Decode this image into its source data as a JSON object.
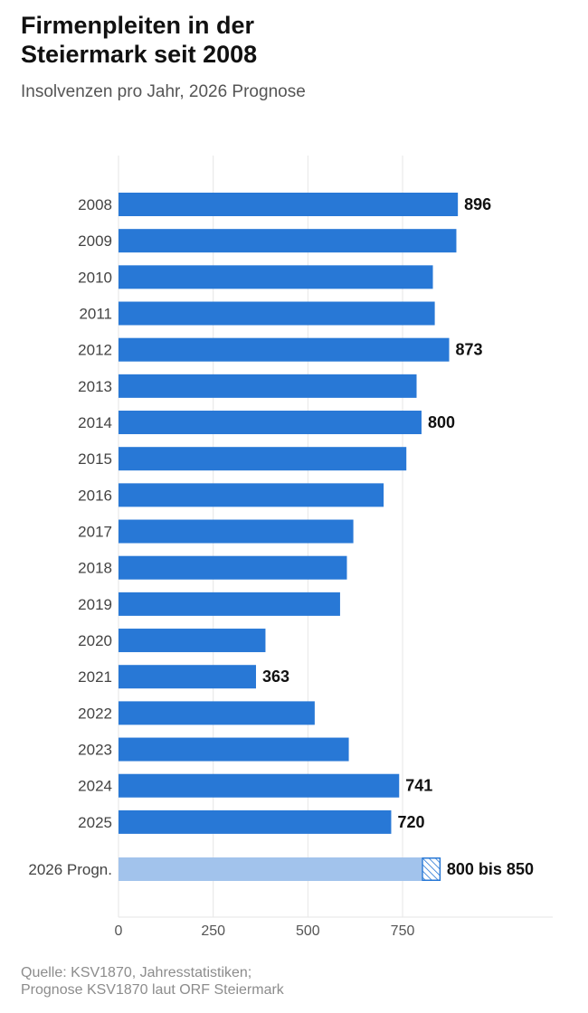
{
  "header": {
    "title_line1": "Firmenpleiten in der",
    "title_line2": "Steiermark seit 2008",
    "subtitle": "Insolvenzen pro Jahr, 2026 Prognose"
  },
  "source": {
    "line1": "Quelle: KSV1870, Jahresstatistiken;",
    "line2": "Prognose KSV1870 laut ORF Steiermark"
  },
  "colors": {
    "bar": "#2878d6",
    "forecast_bar": "#a2c3ec",
    "forecast_range": "#2878d6",
    "grid": "#e6e6e6",
    "tick_text": "#555555",
    "category_text": "#444444",
    "label_text": "#111111"
  },
  "chart_data": {
    "type": "bar",
    "orientation": "horizontal",
    "categories": [
      "2008",
      "2009",
      "2010",
      "2011",
      "2012",
      "2013",
      "2014",
      "2015",
      "2016",
      "2017",
      "2018",
      "2019",
      "2020",
      "2021",
      "2022",
      "2023",
      "2024",
      "2025"
    ],
    "values": [
      896,
      892,
      830,
      835,
      873,
      787,
      800,
      760,
      700,
      620,
      603,
      585,
      388,
      363,
      518,
      608,
      741,
      720
    ],
    "data_labels": [
      "896",
      "",
      "",
      "",
      "873",
      "",
      "800",
      "",
      "",
      "",
      "",
      "",
      "",
      "363",
      "",
      "",
      "741",
      "720"
    ],
    "forecast": {
      "category": "2026 Progn.",
      "low": 800,
      "high": 850,
      "label": "800 bis 850"
    },
    "xaxis": {
      "ticks": [
        0,
        250,
        500,
        750
      ],
      "tick_labels": [
        "0",
        "250",
        "500",
        "750"
      ],
      "xlim": [
        0,
        1160
      ]
    },
    "grid": true
  }
}
